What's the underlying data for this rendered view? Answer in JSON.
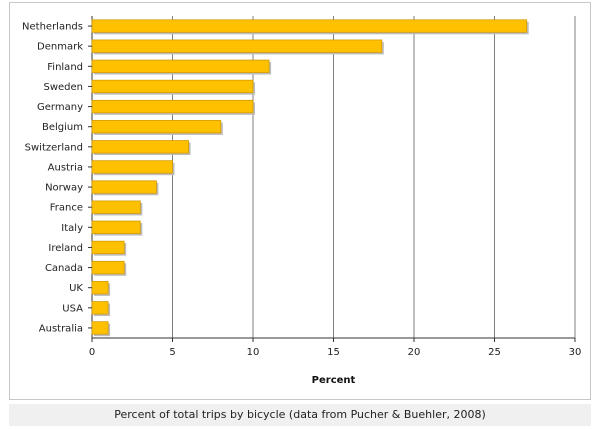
{
  "caption": "Percent of total trips by bicycle (data from Pucher & Buehler, 2008)",
  "colors": {
    "bar": "#ffc000",
    "bar_edge": "#d49a00",
    "bar_shadow": "#bdbdbd",
    "grid": "#7f7f7f"
  },
  "chart_data": {
    "type": "bar",
    "orientation": "horizontal",
    "categories": [
      "Netherlands",
      "Denmark",
      "Finland",
      "Sweden",
      "Germany",
      "Belgium",
      "Switzerland",
      "Austria",
      "Norway",
      "France",
      "Italy",
      "Ireland",
      "Canada",
      "UK",
      "USA",
      "Australia"
    ],
    "values": [
      27,
      18,
      11,
      10,
      10,
      8,
      6,
      5,
      4,
      3,
      3,
      2,
      2,
      1,
      1,
      1
    ],
    "xlabel": "Percent",
    "xlim": [
      0,
      30
    ],
    "xticks": [
      0,
      5,
      10,
      15,
      20,
      25,
      30
    ],
    "grid": true,
    "legend": "none"
  }
}
